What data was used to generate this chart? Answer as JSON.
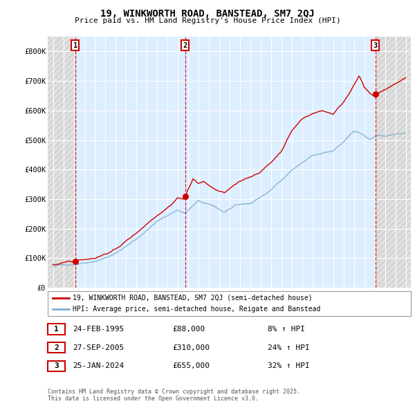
{
  "title": "19, WINKWORTH ROAD, BANSTEAD, SM7 2QJ",
  "subtitle": "Price paid vs. HM Land Registry's House Price Index (HPI)",
  "ylim": [
    0,
    850000
  ],
  "yticks": [
    0,
    100000,
    200000,
    300000,
    400000,
    500000,
    600000,
    700000,
    800000
  ],
  "ytick_labels": [
    "£0",
    "£100K",
    "£200K",
    "£300K",
    "£400K",
    "£500K",
    "£600K",
    "£700K",
    "£800K"
  ],
  "xlim_start": 1992.5,
  "xlim_end": 2027.5,
  "sale_color": "#cc0000",
  "hpi_color": "#7bafd4",
  "sale_dates": [
    1995.15,
    2005.74,
    2024.07
  ],
  "sale_prices": [
    88000,
    310000,
    655000
  ],
  "sale_labels": [
    "1",
    "2",
    "3"
  ],
  "legend_sale": "19, WINKWORTH ROAD, BANSTEAD, SM7 2QJ (semi-detached house)",
  "legend_hpi": "HPI: Average price, semi-detached house, Reigate and Banstead",
  "table_rows": [
    {
      "num": "1",
      "date": "24-FEB-1995",
      "price": "£88,000",
      "hpi": "8% ↑ HPI"
    },
    {
      "num": "2",
      "date": "27-SEP-2005",
      "price": "£310,000",
      "hpi": "24% ↑ HPI"
    },
    {
      "num": "3",
      "date": "25-JAN-2024",
      "price": "£655,000",
      "hpi": "32% ↑ HPI"
    }
  ],
  "footnote": "Contains HM Land Registry data © Crown copyright and database right 2025.\nThis data is licensed under the Open Government Licence v3.0.",
  "background_plot": "#ddeeff",
  "background_hatch": "#e0e0e0"
}
